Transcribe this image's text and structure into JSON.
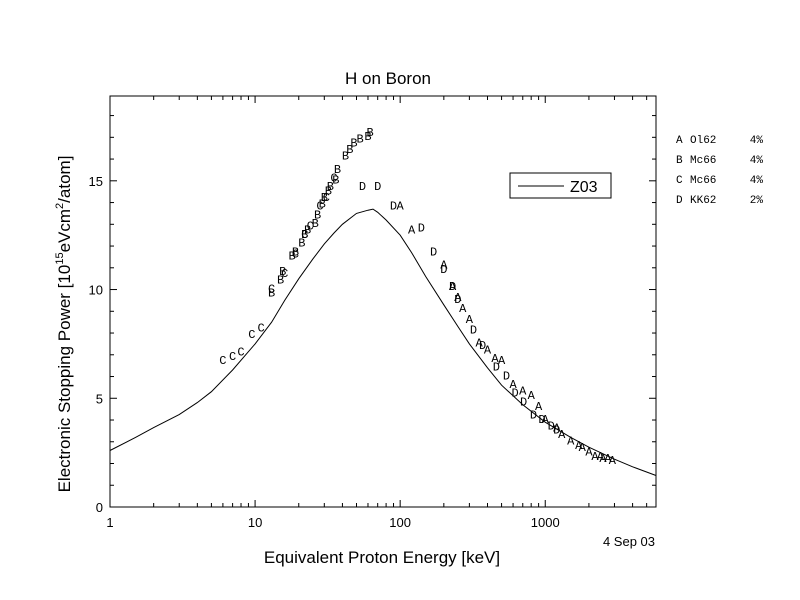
{
  "chart_data": {
    "type": "scatter",
    "title": "H on Boron",
    "xlabel": "Equivalent Proton Energy [keV]",
    "ylabel": {
      "parts": [
        "Electronic Stopping Power [10",
        "15",
        "eVcm",
        "2",
        "/atom]"
      ]
    },
    "x_scale": "log",
    "xlim": [
      1,
      5800
    ],
    "ylim": [
      0,
      18.9
    ],
    "x_ticks": [
      {
        "value": 1,
        "label": "1"
      },
      {
        "value": 10,
        "label": "10"
      },
      {
        "value": 100,
        "label": "100"
      },
      {
        "value": 1000,
        "label": "1000"
      }
    ],
    "y_ticks": [
      {
        "value": 0,
        "label": "0"
      },
      {
        "value": 5,
        "label": "5"
      },
      {
        "value": 10,
        "label": "10"
      },
      {
        "value": 15,
        "label": "15"
      }
    ],
    "date_stamp": "4 Sep 03",
    "legend_box": {
      "entries": [
        "Z03"
      ],
      "placement": "top-right inside plot"
    },
    "side_legend": [
      {
        "letter": "A",
        "ref": "Ol62",
        "err": "4%"
      },
      {
        "letter": "B",
        "ref": "Mc66",
        "err": "4%"
      },
      {
        "letter": "C",
        "ref": "Mc66",
        "err": "4%"
      },
      {
        "letter": "D",
        "ref": "KK62",
        "err": "2%"
      }
    ],
    "line": {
      "name": "Z03",
      "x": [
        1,
        1.5,
        2,
        3,
        4,
        5,
        7,
        10,
        13,
        16,
        20,
        25,
        30,
        35,
        40,
        50,
        60,
        65,
        70,
        80,
        100,
        120,
        150,
        200,
        250,
        300,
        400,
        500,
        700,
        1000,
        1500,
        2000,
        3000,
        4000,
        5800
      ],
      "y": [
        2.6,
        3.2,
        3.65,
        4.25,
        4.8,
        5.3,
        6.3,
        7.5,
        8.5,
        9.5,
        10.5,
        11.4,
        12.1,
        12.6,
        13.0,
        13.5,
        13.65,
        13.7,
        13.55,
        13.2,
        12.5,
        11.7,
        10.6,
        9.3,
        8.3,
        7.5,
        6.4,
        5.6,
        4.7,
        3.9,
        3.2,
        2.75,
        2.2,
        1.85,
        1.45
      ]
    },
    "points": [
      {
        "series": "A",
        "x": [
          100,
          120,
          200,
          230,
          250,
          270,
          300,
          350,
          400,
          450,
          500,
          600,
          700,
          800,
          900,
          1000,
          1200,
          1300,
          1500,
          1700,
          1800,
          2000,
          2200,
          2400,
          2500,
          2700,
          2900
        ],
        "y": [
          13.9,
          12.8,
          11.2,
          10.2,
          9.7,
          9.2,
          8.7,
          7.6,
          7.3,
          6.9,
          6.8,
          5.7,
          5.4,
          5.2,
          4.7,
          4.1,
          3.7,
          3.4,
          3.1,
          2.9,
          2.8,
          2.6,
          2.4,
          2.4,
          2.3,
          2.3,
          2.2
        ]
      },
      {
        "series": "B",
        "x": [
          13,
          15,
          15.5,
          18,
          19,
          21,
          22,
          23,
          26,
          27,
          29,
          30,
          32,
          33,
          36,
          37,
          42,
          45,
          48,
          53,
          60,
          62
        ],
        "y": [
          9.9,
          10.5,
          10.9,
          11.6,
          11.8,
          12.2,
          12.6,
          12.8,
          13.1,
          13.5,
          14.0,
          14.3,
          14.6,
          14.8,
          15.1,
          15.6,
          16.2,
          16.5,
          16.8,
          17.0,
          17.1,
          17.3
        ]
      },
      {
        "series": "C",
        "x": [
          6,
          7,
          8,
          9.5,
          11,
          13,
          16,
          19,
          22,
          24,
          28,
          31,
          35
        ],
        "y": [
          6.8,
          7.0,
          7.2,
          8.0,
          8.3,
          10.1,
          10.8,
          11.7,
          12.6,
          13.0,
          13.9,
          14.3,
          15.2
        ]
      },
      {
        "series": "D",
        "x": [
          55,
          70,
          90,
          140,
          170,
          200,
          230,
          250,
          320,
          370,
          460,
          540,
          620,
          710,
          830,
          950,
          1100,
          1200
        ],
        "y": [
          14.8,
          14.8,
          13.9,
          12.9,
          11.8,
          11.0,
          10.2,
          9.6,
          8.2,
          7.5,
          6.5,
          6.1,
          5.3,
          4.9,
          4.3,
          4.1,
          3.8,
          3.6
        ]
      }
    ]
  }
}
